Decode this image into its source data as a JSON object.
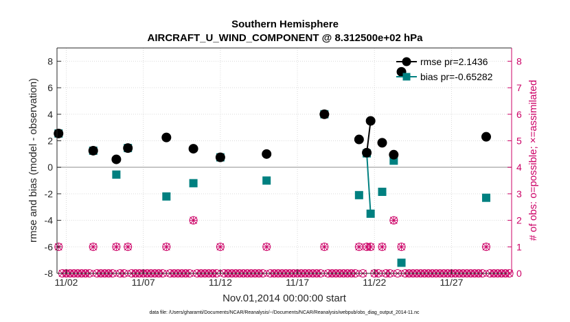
{
  "chart_data": {
    "type": "line",
    "title": "Southern Hemisphere",
    "subtitle": "AIRCRAFT_U_WIND_COMPONENT @ 8.312500e+02 hPa",
    "xlabel": "Nov.01,2014 00:00:00 start",
    "ylabel": "rmse and bias (model - observation)",
    "ylabel_right": "# of obs: o=possible; ×=assimilated",
    "footnote": "data file: /Users/gharamti/Documents/NCAR/Reanalysis/~/Documents/NCAR/Reanalysis/webpub/obs_diag_output_2014-11.nc",
    "xlim": [
      1.4,
      30.9
    ],
    "ylim": [
      -8,
      9
    ],
    "ylim_right": [
      0,
      8.5
    ],
    "x_ticks": [
      2,
      7,
      12,
      17,
      22,
      27
    ],
    "x_tick_labels": [
      "11/02",
      "11/07",
      "11/12",
      "11/17",
      "11/22",
      "11/27"
    ],
    "y_ticks": [
      -8,
      -6,
      -4,
      -2,
      0,
      2,
      4,
      6,
      8
    ],
    "y_ticks_right": [
      0,
      1,
      2,
      3,
      4,
      5,
      6,
      7,
      8
    ],
    "zero_line": 0,
    "series": [
      {
        "name": "rmse",
        "legend": "rmse pr=2.1436",
        "color": "#000000",
        "marker": "circle",
        "x": [
          1.5,
          3.75,
          5.25,
          6.0,
          8.5,
          10.25,
          12.0,
          15.0,
          18.75,
          21.0,
          21.5,
          21.75,
          22.5,
          23.25,
          23.75,
          29.25
        ],
        "values": [
          2.55,
          1.25,
          0.6,
          1.45,
          2.25,
          1.4,
          0.75,
          1.0,
          4.0,
          2.1,
          1.1,
          3.5,
          1.85,
          0.95,
          7.2,
          2.3
        ]
      },
      {
        "name": "bias",
        "legend": "bias pr=-0.65282",
        "color": "#008080",
        "marker": "square",
        "x": [
          1.5,
          3.75,
          5.25,
          6.0,
          8.5,
          10.25,
          12.0,
          15.0,
          18.75,
          21.0,
          21.5,
          21.75,
          22.5,
          23.25,
          23.75,
          29.25
        ],
        "values": [
          2.55,
          1.25,
          -0.55,
          1.45,
          -2.2,
          -1.2,
          0.75,
          -1.0,
          4.0,
          -2.1,
          1.05,
          -3.5,
          -1.85,
          0.5,
          -7.2,
          -2.3
        ]
      }
    ],
    "connected_runs": [
      [
        10,
        11
      ],
      [
        10,
        11
      ]
    ],
    "obs_possible": {
      "color": "#cc0066",
      "marker": "circle-open",
      "x_start": 1.5,
      "x_step": 0.25,
      "counts_nonzero": [
        [
          1.5,
          1
        ],
        [
          3.75,
          1
        ],
        [
          5.25,
          1
        ],
        [
          6.0,
          1
        ],
        [
          8.5,
          1
        ],
        [
          10.25,
          2
        ],
        [
          12.0,
          1
        ],
        [
          15.0,
          1
        ],
        [
          18.75,
          1
        ],
        [
          21.0,
          1
        ],
        [
          21.5,
          1
        ],
        [
          21.75,
          1
        ],
        [
          22.5,
          1
        ],
        [
          23.25,
          2
        ],
        [
          23.75,
          1
        ],
        [
          29.25,
          1
        ]
      ]
    },
    "obs_assimilated": {
      "color": "#cc0066",
      "marker": "x",
      "counts_nonzero": [
        [
          1.5,
          1
        ],
        [
          3.75,
          1
        ],
        [
          5.25,
          1
        ],
        [
          6.0,
          1
        ],
        [
          8.5,
          1
        ],
        [
          10.25,
          2
        ],
        [
          12.0,
          1
        ],
        [
          15.0,
          1
        ],
        [
          18.75,
          1
        ],
        [
          21.0,
          1
        ],
        [
          21.5,
          1
        ],
        [
          21.75,
          1
        ],
        [
          22.5,
          1
        ],
        [
          23.25,
          2
        ],
        [
          23.75,
          1
        ],
        [
          29.25,
          1
        ]
      ]
    }
  }
}
